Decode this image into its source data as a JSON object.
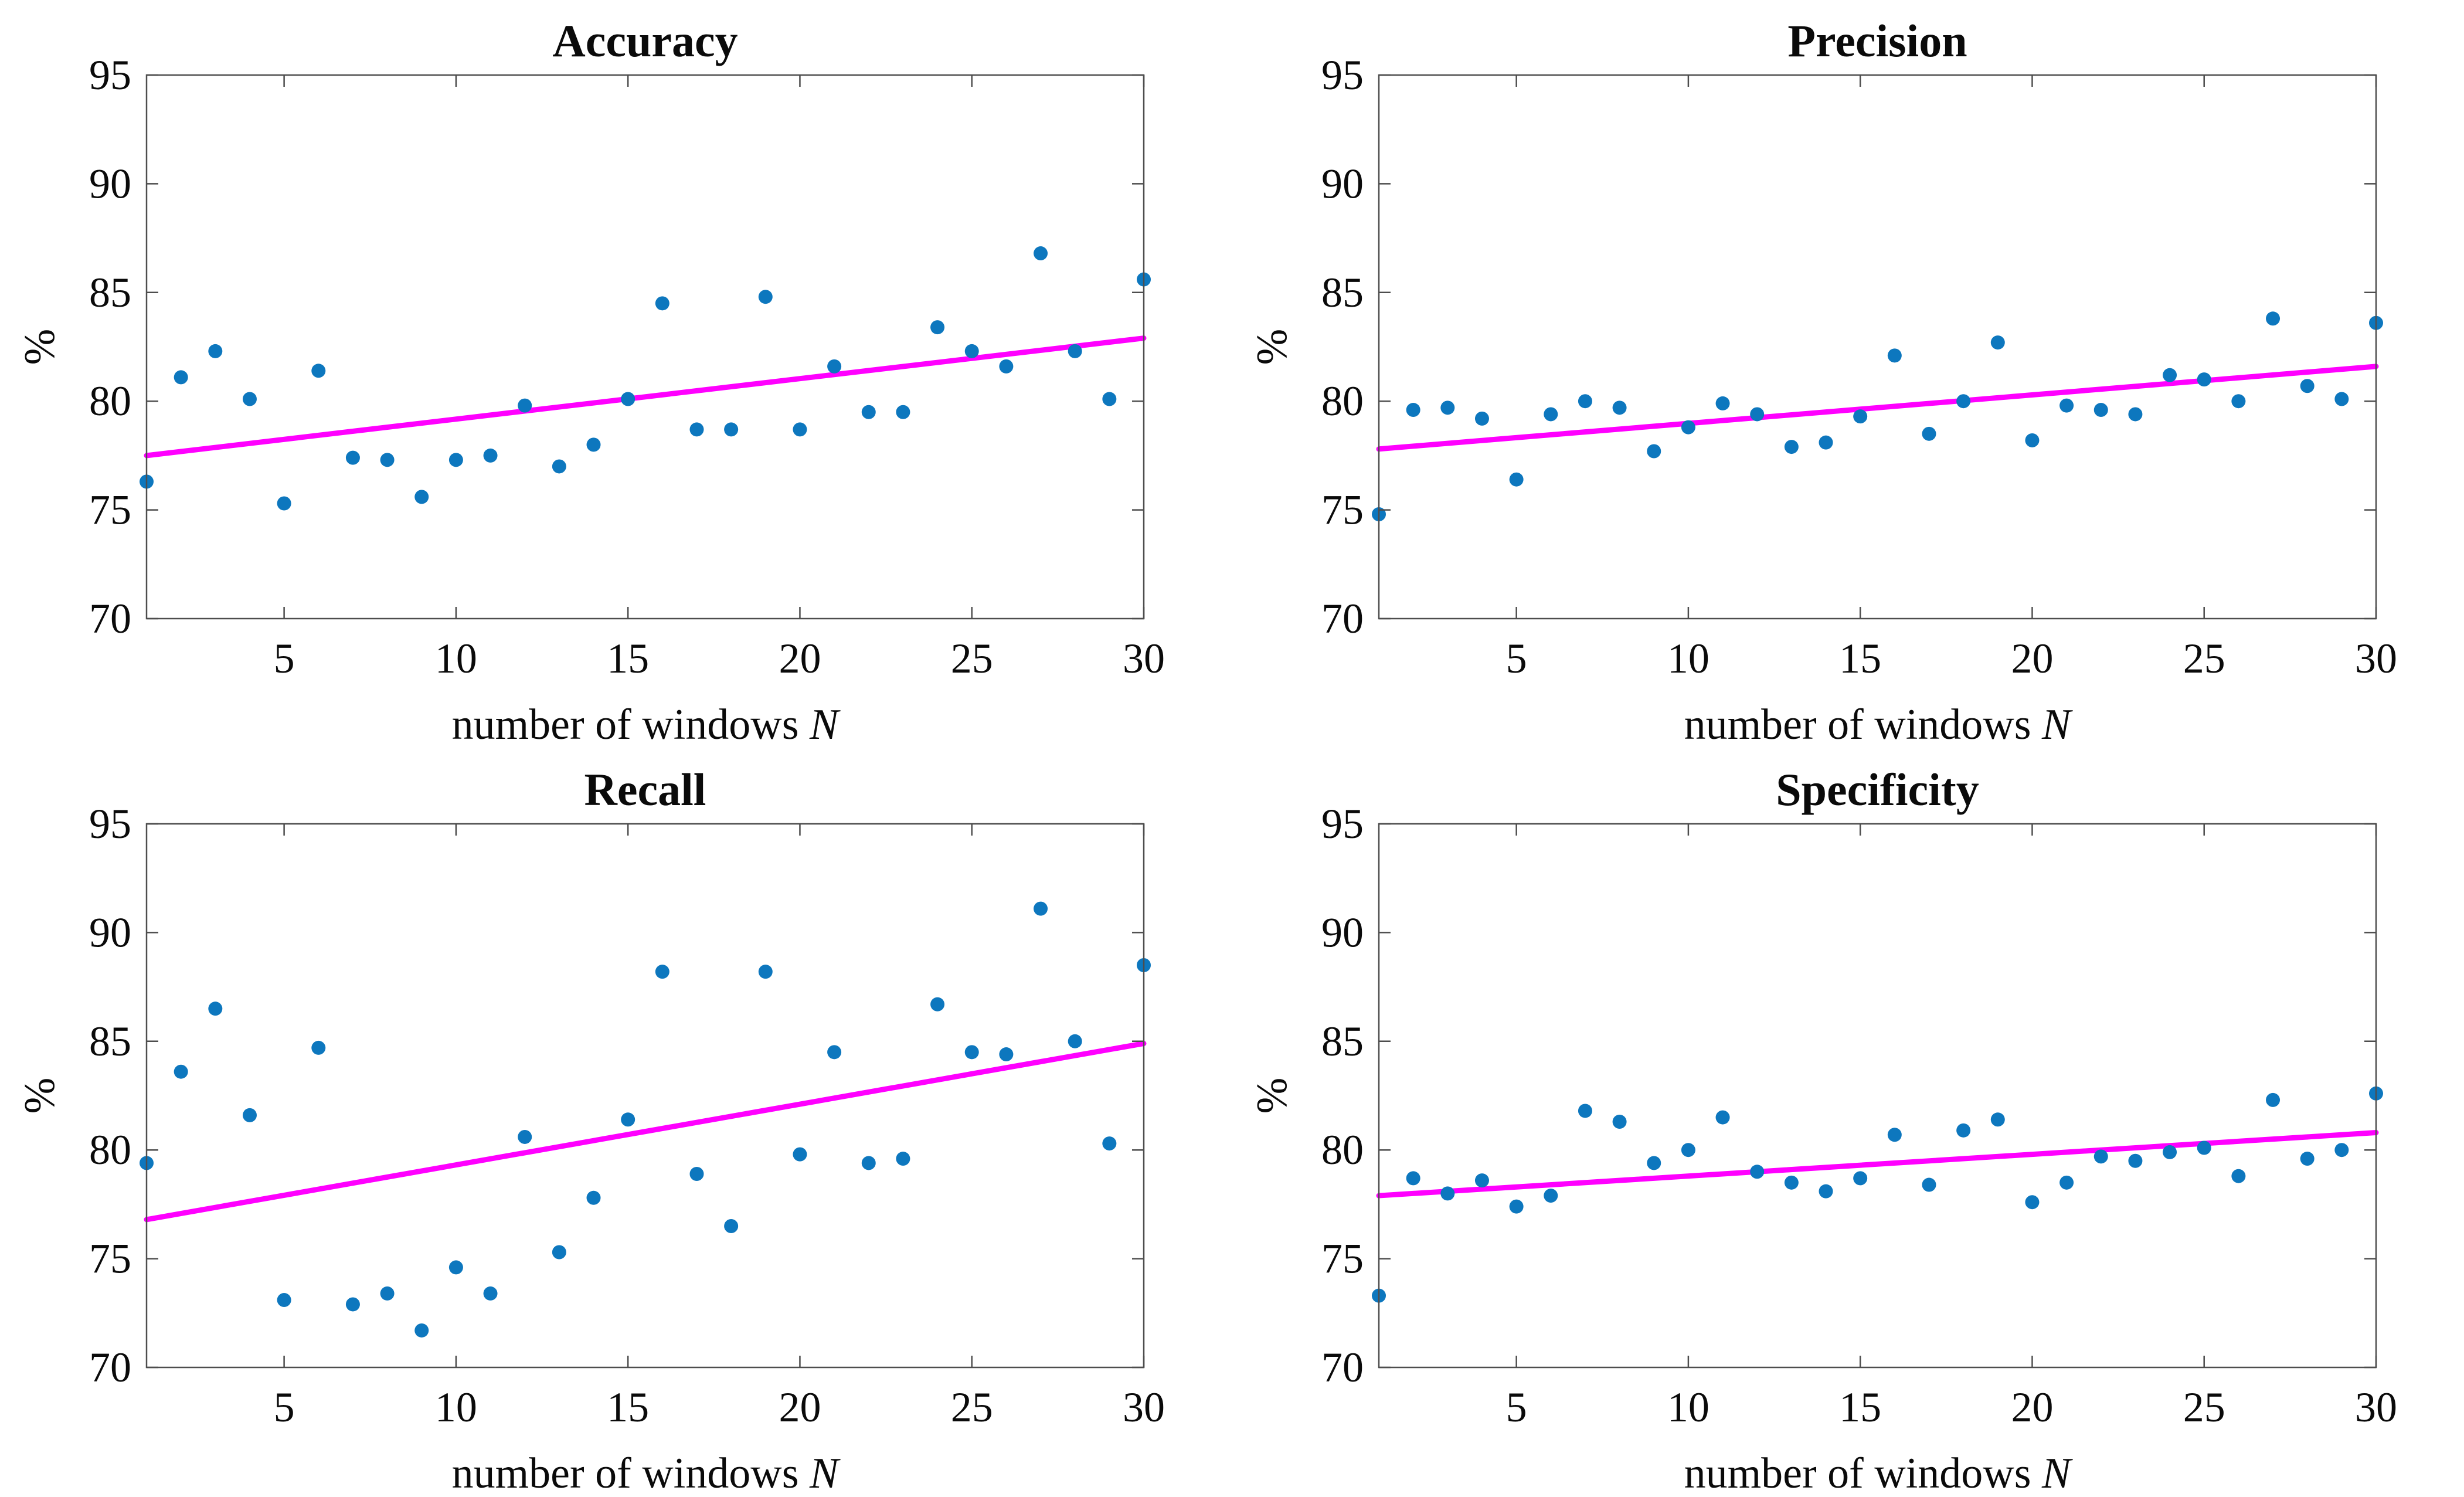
{
  "figure": {
    "background": "#ffffff",
    "marker_color": "#0d77be",
    "fit_line_color": "#ff00ff",
    "axis_color": "#4d4d4d",
    "text_color": "#0a0a0a"
  },
  "chart_data": [
    {
      "type": "scatter",
      "title": "Accuracy",
      "xlabel": "number of windows N",
      "xlabel_prefix": "number of windows ",
      "xlabel_var": "N",
      "ylabel": "%",
      "xlim": [
        1,
        30
      ],
      "ylim": [
        70,
        95
      ],
      "xticks": [
        5,
        10,
        15,
        20,
        25,
        30
      ],
      "yticks": [
        70,
        75,
        80,
        85,
        90,
        95
      ],
      "grid": false,
      "legend": null,
      "x": [
        1,
        2,
        3,
        4,
        5,
        6,
        7,
        8,
        9,
        10,
        11,
        12,
        13,
        14,
        15,
        16,
        17,
        18,
        19,
        20,
        21,
        22,
        23,
        24,
        25,
        26,
        27,
        28,
        29,
        30
      ],
      "series": [
        {
          "name": "data points",
          "type": "scatter",
          "color": "#0d77be",
          "values": [
            76.3,
            81.1,
            82.3,
            80.1,
            75.3,
            81.4,
            77.4,
            77.3,
            75.6,
            77.3,
            77.5,
            79.8,
            77.0,
            78.0,
            80.1,
            84.5,
            78.7,
            78.7,
            84.8,
            78.7,
            81.6,
            79.5,
            79.5,
            83.4,
            82.3,
            81.6,
            86.8,
            82.3,
            80.1,
            85.6
          ]
        },
        {
          "name": "linear fit",
          "type": "line",
          "color": "#ff00ff",
          "x": [
            1,
            30
          ],
          "y": [
            77.5,
            82.9
          ]
        }
      ]
    },
    {
      "type": "scatter",
      "title": "Precision",
      "xlabel": "number of windows N",
      "xlabel_prefix": "number of windows ",
      "xlabel_var": "N",
      "ylabel": "%",
      "xlim": [
        1,
        30
      ],
      "ylim": [
        70,
        95
      ],
      "xticks": [
        5,
        10,
        15,
        20,
        25,
        30
      ],
      "yticks": [
        70,
        75,
        80,
        85,
        90,
        95
      ],
      "grid": false,
      "legend": null,
      "x": [
        1,
        2,
        3,
        4,
        5,
        6,
        7,
        8,
        9,
        10,
        11,
        12,
        13,
        14,
        15,
        16,
        17,
        18,
        19,
        20,
        21,
        22,
        23,
        24,
        25,
        26,
        27,
        28,
        29,
        30
      ],
      "series": [
        {
          "name": "data points",
          "type": "scatter",
          "color": "#0d77be",
          "values": [
            74.8,
            79.6,
            79.7,
            79.2,
            76.4,
            79.4,
            80.0,
            79.7,
            77.7,
            78.8,
            79.9,
            79.4,
            77.9,
            78.1,
            79.3,
            82.1,
            78.5,
            80.0,
            82.7,
            78.2,
            79.8,
            79.6,
            79.4,
            81.2,
            81.0,
            80.0,
            83.8,
            80.7,
            80.1,
            83.6
          ]
        },
        {
          "name": "linear fit",
          "type": "line",
          "color": "#ff00ff",
          "x": [
            1,
            30
          ],
          "y": [
            77.8,
            81.6
          ]
        }
      ]
    },
    {
      "type": "scatter",
      "title": "Recall",
      "xlabel": "number of windows N",
      "xlabel_prefix": "number of windows ",
      "xlabel_var": "N",
      "ylabel": "%",
      "xlim": [
        1,
        30
      ],
      "ylim": [
        70,
        95
      ],
      "xticks": [
        5,
        10,
        15,
        20,
        25,
        30
      ],
      "yticks": [
        70,
        75,
        80,
        85,
        90,
        95
      ],
      "grid": false,
      "legend": null,
      "x": [
        1,
        2,
        3,
        4,
        5,
        6,
        7,
        8,
        9,
        10,
        11,
        12,
        13,
        14,
        15,
        16,
        17,
        18,
        19,
        20,
        21,
        22,
        23,
        24,
        25,
        26,
        27,
        28,
        29,
        30
      ],
      "series": [
        {
          "name": "data points",
          "type": "scatter",
          "color": "#0d77be",
          "values": [
            79.4,
            83.6,
            86.5,
            81.6,
            73.1,
            84.7,
            72.9,
            73.4,
            71.7,
            74.6,
            73.4,
            80.6,
            75.3,
            77.8,
            81.4,
            88.2,
            78.9,
            76.5,
            88.2,
            79.8,
            84.5,
            79.4,
            79.6,
            86.7,
            84.5,
            84.4,
            91.1,
            85.0,
            80.3,
            88.5
          ]
        },
        {
          "name": "linear fit",
          "type": "line",
          "color": "#ff00ff",
          "x": [
            1,
            30
          ],
          "y": [
            76.8,
            84.9
          ]
        }
      ]
    },
    {
      "type": "scatter",
      "title": "Specificity",
      "xlabel": "number of windows N",
      "xlabel_prefix": "number of windows ",
      "xlabel_var": "N",
      "ylabel": "%",
      "xlim": [
        1,
        30
      ],
      "ylim": [
        70,
        95
      ],
      "xticks": [
        5,
        10,
        15,
        20,
        25,
        30
      ],
      "yticks": [
        70,
        75,
        80,
        85,
        90,
        95
      ],
      "grid": false,
      "legend": null,
      "x": [
        1,
        2,
        3,
        4,
        5,
        6,
        7,
        8,
        9,
        10,
        11,
        12,
        13,
        14,
        15,
        16,
        17,
        18,
        19,
        20,
        21,
        22,
        23,
        24,
        25,
        26,
        27,
        28,
        29,
        30
      ],
      "series": [
        {
          "name": "data points",
          "type": "scatter",
          "color": "#0d77be",
          "values": [
            73.3,
            78.7,
            78.0,
            78.6,
            77.4,
            77.9,
            81.8,
            81.3,
            79.4,
            80.0,
            81.5,
            79.0,
            78.5,
            78.1,
            78.7,
            80.7,
            78.4,
            80.9,
            81.4,
            77.6,
            78.5,
            79.7,
            79.5,
            79.9,
            80.1,
            78.8,
            82.3,
            79.6,
            80.0,
            82.6
          ]
        },
        {
          "name": "linear fit",
          "type": "line",
          "color": "#ff00ff",
          "x": [
            1,
            30
          ],
          "y": [
            77.9,
            80.8
          ]
        }
      ]
    }
  ]
}
